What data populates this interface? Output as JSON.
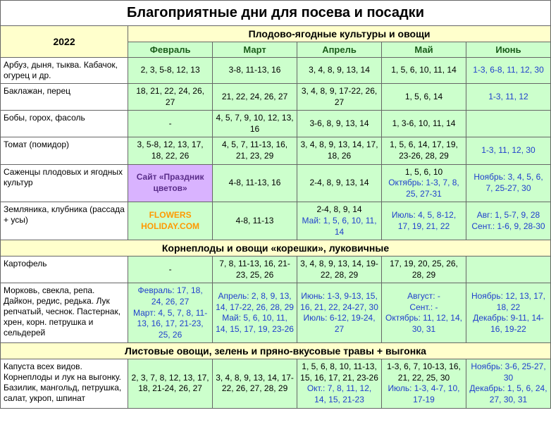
{
  "title": "Благоприятные дни для посева и посадки",
  "year": "2022",
  "section1": "Плодово-ягодные культуры и овощи",
  "section2": "Корнеплоды и овощи «корешки», луковичные",
  "section3": "Листовые овощи, зелень и пряно-вкусовые травы + выгонка",
  "months": [
    "Февраль",
    "Март",
    "Апрель",
    "Май",
    "Июнь"
  ],
  "site_text": "Сайт «Праздник цветов»",
  "holiday_text": "FLOWERS HOLIDAY.COM",
  "rows": {
    "r1": {
      "label": "Арбуз, дыня, тыква. Кабачок, огурец и др.",
      "c1": "2, 3, 5-8, 12, 13",
      "c2": "3-8, 11-13, 16",
      "c3": "3, 4, 8, 9, 13, 14",
      "c4": "1, 5, 6, 10, 11, 14",
      "c5": "1-3, 6-8, 11, 12, 30"
    },
    "r2": {
      "label": "Баклажан, перец",
      "c1": "18, 21, 22, 24, 26, 27",
      "c2": "21, 22, 24, 26, 27",
      "c3": "3, 4, 8, 9, 17-22, 26, 27",
      "c4": "1, 5, 6, 14",
      "c5": "1-3, 11, 12"
    },
    "r3": {
      "label": "Бобы, горох, фасоль",
      "c1": "-",
      "c2": "4, 5, 7, 9, 10, 12, 13, 16",
      "c3": "3-6, 8, 9, 13, 14",
      "c4": "1, 3-6, 10, 11, 14",
      "c5": ""
    },
    "r4": {
      "label": "Томат (помидор)",
      "c1": "3, 5-8, 12, 13, 17, 18, 22, 26",
      "c2": "4, 5, 7, 11-13, 16, 21, 23, 29",
      "c3": "3, 4, 8, 9, 13, 14, 17, 18, 26",
      "c4": "1, 5, 6, 14, 17, 19, 23-26, 28, 29",
      "c5": "1-3, 11, 12, 30"
    },
    "r5": {
      "label": "Саженцы плодовых и ягодных культур",
      "c2": "4-8, 11-13, 16",
      "c3": "2-4, 8, 9, 13, 14",
      "c4a": "1, 5, 6, 10",
      "c4b": "Октябрь: 1-3, 7, 8, 25, 27-31",
      "c5a": "Ноябрь: 3, 4, 5, 6, 7, 25-27, 30"
    },
    "r6": {
      "label": "Земляника, клубника (рассада + усы)",
      "c2": "4-8, 11-13",
      "c3a": "2-4, 8, 9, 14",
      "c3b": "Май: 1, 5, 6, 10, 11, 14",
      "c4a": "Июль: 4, 5, 8-12, 17, 19, 21, 22",
      "c5a": "Авг: 1, 5-7, 9, 28",
      "c5b": "Сент.: 1-6, 9, 28-30"
    },
    "r7": {
      "label": "Картофель",
      "c1": "-",
      "c2": "7, 8, 11-13, 16, 21-23, 25, 26",
      "c3": "3, 4, 8, 9, 13, 14, 19-22, 28, 29",
      "c4": "17, 19, 20, 25, 26, 28, 29",
      "c5": ""
    },
    "r8": {
      "label": "Морковь, свекла, репа. Дайкон, редис, редька. Лук репчатый, чеснок. Пастернак, хрен, корн. петрушка и сельдерей",
      "c1a": "Февраль: 17, 18, 24, 26, 27",
      "c1b": "Март: 4, 5, 7, 8, 11-13, 16, 17, 21-23, 25, 26",
      "c2a": "Апрель: 2, 8, 9, 13, 14, 17-22, 26, 28, 29",
      "c2b": "Май: 5, 6, 10, 11, 14, 15, 17, 19, 23-26",
      "c3a": "Июнь: 1-3, 9-13, 15, 16, 21, 22, 24-27, 30",
      "c3b": "Июль: 6-12, 19-24, 27",
      "c4a": "Август: -",
      "c4b": "Сент.: -",
      "c4c": "Октябрь: 11, 12, 14, 30, 31",
      "c5a": "Ноябрь: 12, 13, 17, 18, 22",
      "c5b": "Декабрь: 9-11, 14-16, 19-22"
    },
    "r9": {
      "label": "Капуста всех видов. Корнеплоды и лук на выгонку. Базилик, мангольд, петрушка, салат, укроп, шпинат",
      "c1": "2, 3, 7, 8, 12, 13, 17, 18, 21-24, 26, 27",
      "c2": "3, 4, 8, 9, 13, 14, 17-22, 26, 27, 28, 29",
      "c3a": "1, 5, 6, 8, 10, 11-13, 15, 16, 17, 21, 23-26",
      "c3b": "Окт.: 7, 8, 11, 12, 14, 15, 21-23",
      "c4a": "1-3, 6, 7, 10-13, 16, 21, 22, 25, 30",
      "c4b": "Июль: 1-3, 4-7, 10, 17-19",
      "c5a": "Ноябрь: 3-6, 25-27, 30",
      "c5b": "Декабрь: 1, 5, 6, 24, 27, 30, 31"
    }
  },
  "colors": {
    "header_bg": "#ffffcc",
    "cell_bg": "#ccffcc",
    "site_bg": "#d9b3ff",
    "blue_text": "#2040cc",
    "green_text": "#1a5c1a",
    "orange_text": "#ff9900"
  }
}
